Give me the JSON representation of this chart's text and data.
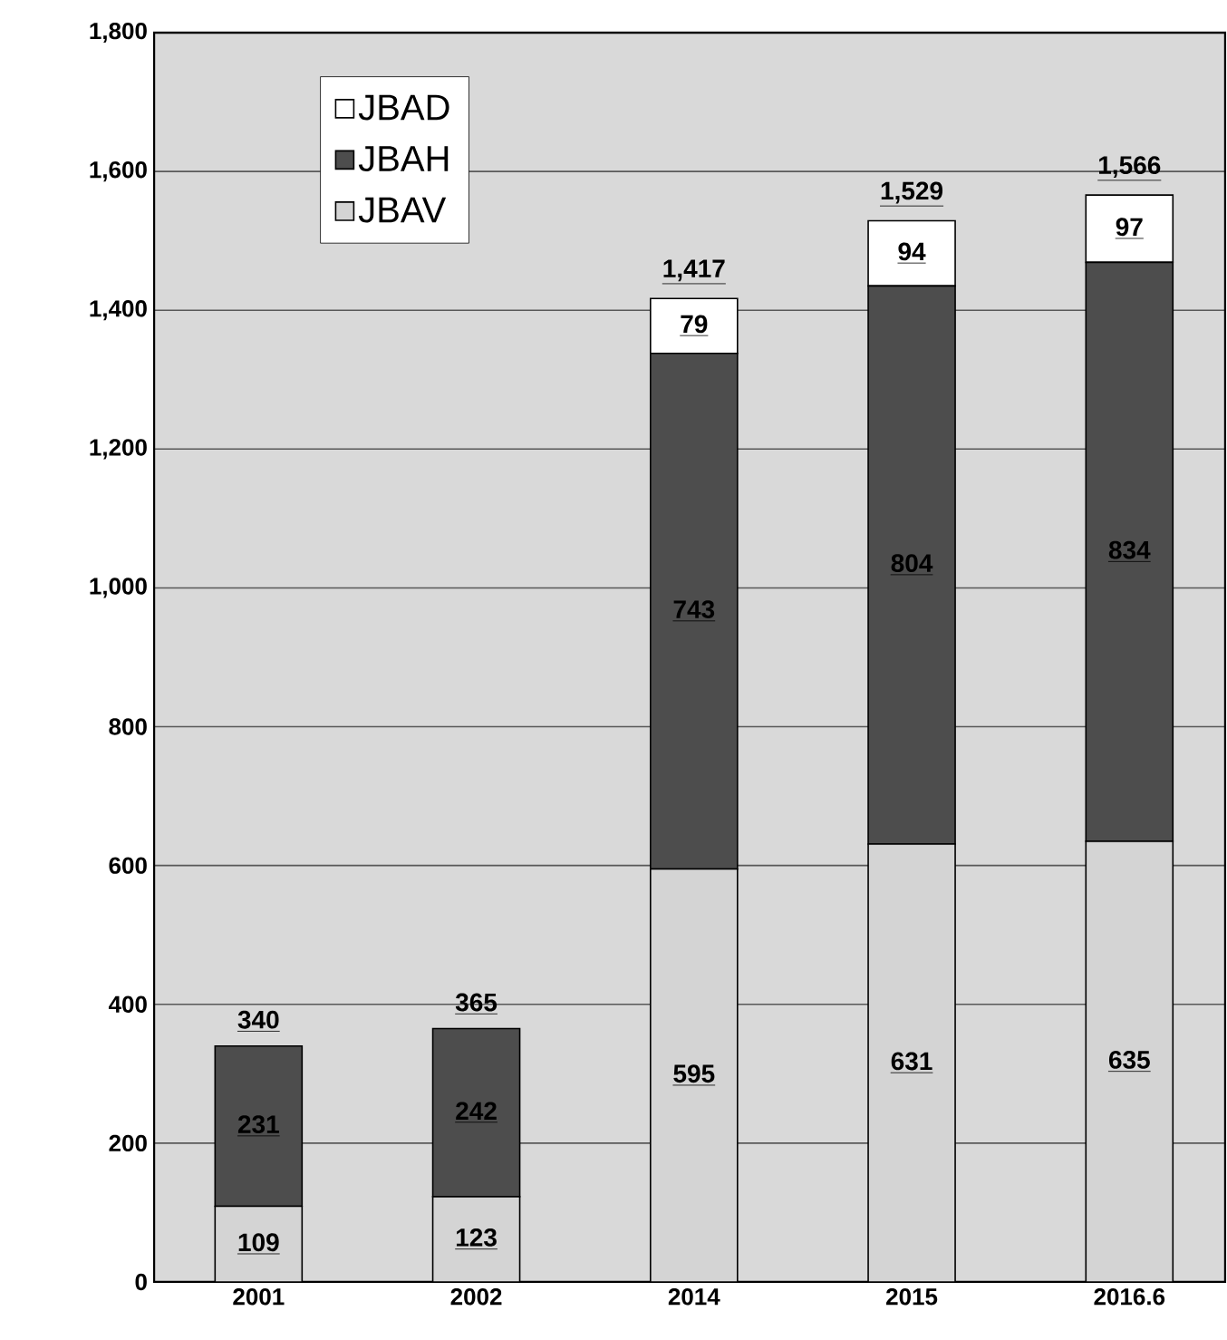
{
  "chart_data": {
    "type": "bar",
    "stacked": true,
    "categories": [
      "2001",
      "2002",
      "2014",
      "2015",
      "2016.6"
    ],
    "series": [
      {
        "name": "JBAV",
        "color": "#d4d4d4",
        "values": [
          109,
          123,
          595,
          631,
          635
        ]
      },
      {
        "name": "JBAH",
        "color": "#4d4d4d",
        "values": [
          231,
          242,
          743,
          804,
          834
        ]
      },
      {
        "name": "JBAD",
        "color": "#ffffff",
        "values": [
          null,
          null,
          79,
          94,
          97
        ]
      }
    ],
    "totals": [
      "340",
      "365",
      "1,417",
      "1,529",
      "1,566"
    ],
    "ylim": [
      0,
      1800
    ],
    "yticks": [
      0,
      200,
      400,
      600,
      800,
      {
        "value": 1000,
        "label": "1,000"
      },
      {
        "value": 1200,
        "label": "1,200"
      },
      {
        "value": 1400,
        "label": "1,400"
      },
      {
        "value": 1600,
        "label": "1,600"
      },
      {
        "value": 1800,
        "label": "1,800"
      }
    ],
    "grid": "y",
    "legend": "top left",
    "data_labels": true
  }
}
